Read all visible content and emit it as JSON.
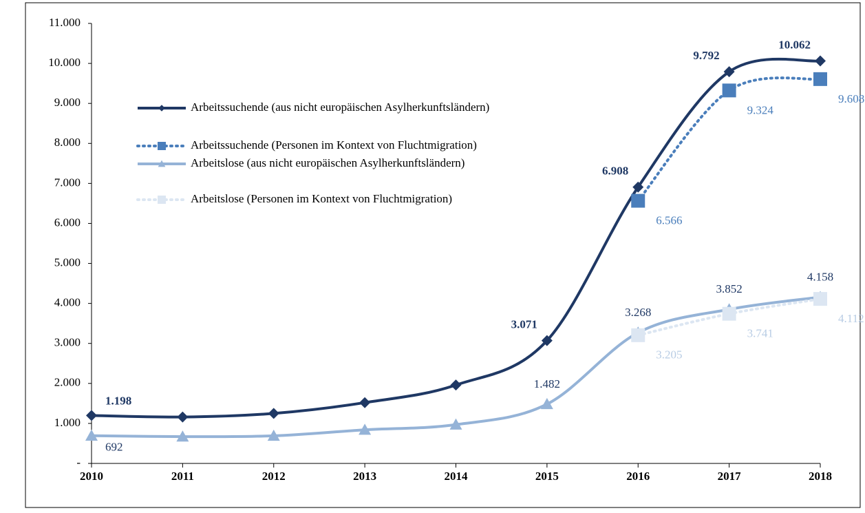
{
  "chart_data": {
    "type": "line",
    "categories": [
      "2010",
      "2011",
      "2012",
      "2013",
      "2014",
      "2015",
      "2016",
      "2017",
      "2018"
    ],
    "series": [
      {
        "name": "Arbeitssuchende (aus nicht europäischen Asylherkunftsländern)",
        "color": "#1f3864",
        "marker": "diamond",
        "dashed": false,
        "values": [
          1198,
          1160,
          1250,
          1520,
          1960,
          3071,
          6908,
          9792,
          10062
        ],
        "value_labels": [
          "1.198",
          null,
          null,
          null,
          null,
          "3.071",
          "6.908",
          "9.792",
          "10.062"
        ]
      },
      {
        "name": "Arbeitssuchende (Personen im Kontext von Fluchtmigration)",
        "color": "#4a7ebb",
        "marker": "square",
        "dashed": true,
        "values": [
          null,
          null,
          null,
          null,
          null,
          null,
          6566,
          9324,
          9608
        ],
        "value_labels": [
          null,
          null,
          null,
          null,
          null,
          null,
          "6.566",
          "9.324",
          "9.608"
        ]
      },
      {
        "name": "Arbeitslose (aus nicht europäischen Asylherkunftsländern)",
        "color": "#95b3d7",
        "marker": "triangle",
        "dashed": false,
        "values": [
          692,
          670,
          690,
          840,
          970,
          1482,
          3268,
          3852,
          4158
        ],
        "value_labels": [
          "692",
          null,
          null,
          null,
          null,
          "1.482",
          "3.268",
          "3.852",
          "4.158"
        ]
      },
      {
        "name": "Arbeitslose (Personen im Kontext von Fluchtmigration)",
        "color": "#dce6f2",
        "marker": "square",
        "dashed": true,
        "values": [
          null,
          null,
          null,
          null,
          null,
          null,
          3205,
          3741,
          4112
        ],
        "value_labels": [
          null,
          null,
          null,
          null,
          null,
          null,
          "3.205",
          "3.741",
          "4.112"
        ]
      }
    ],
    "ylim": [
      0,
      11000
    ],
    "yticks": [
      {
        "value": 0,
        "label": "-"
      },
      {
        "value": 1000,
        "label": "1.000"
      },
      {
        "value": 2000,
        "label": "2.000"
      },
      {
        "value": 3000,
        "label": "3.000"
      },
      {
        "value": 4000,
        "label": "4.000"
      },
      {
        "value": 5000,
        "label": "5.000"
      },
      {
        "value": 6000,
        "label": "6.000"
      },
      {
        "value": 7000,
        "label": "7.000"
      },
      {
        "value": 8000,
        "label": "8.000"
      },
      {
        "value": 9000,
        "label": "9.000"
      },
      {
        "value": 10000,
        "label": "10.000"
      },
      {
        "value": 11000,
        "label": "11.000"
      }
    ],
    "grid": false,
    "legend": "upper left"
  }
}
